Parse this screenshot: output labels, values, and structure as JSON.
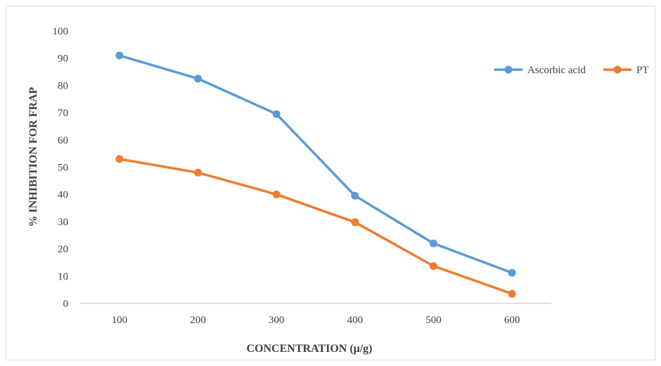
{
  "chart_data": {
    "type": "line",
    "title": "",
    "xlabel": "CONCENTRATION (μ/g)",
    "ylabel": "% INHIBITION FOR FRAP",
    "categories": [
      "100",
      "200",
      "300",
      "400",
      "500",
      "600"
    ],
    "ylim": [
      0,
      100
    ],
    "yticks": [
      "0",
      "10",
      "20",
      "30",
      "40",
      "50",
      "60",
      "70",
      "80",
      "90",
      "100"
    ],
    "grid": false,
    "legend_position": "top-right",
    "series": [
      {
        "name": "Ascorbic acid",
        "color": "#5b9bd5",
        "values": [
          91,
          82.5,
          69.5,
          39.5,
          22,
          11.2
        ]
      },
      {
        "name": "PT",
        "color": "#ed7d31",
        "values": [
          53,
          48,
          40,
          29.8,
          13.7,
          3.5
        ]
      }
    ]
  }
}
